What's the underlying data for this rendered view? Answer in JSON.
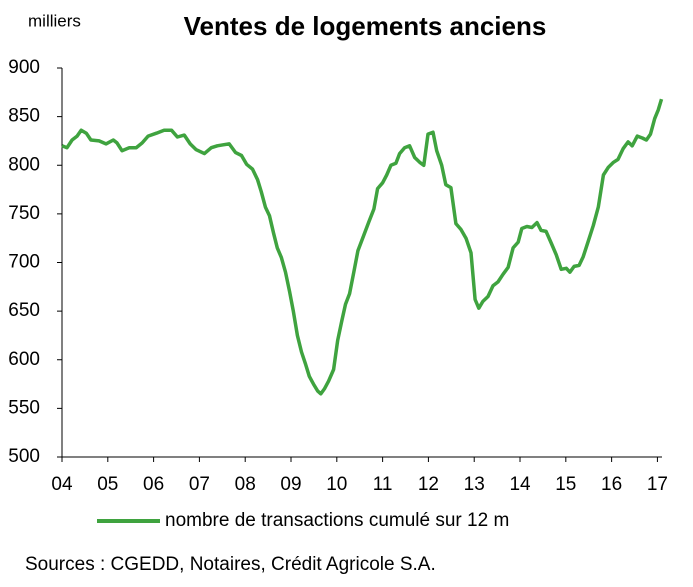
{
  "chart_data": {
    "type": "line",
    "title": "Ventes de logements anciens",
    "y_label": "milliers",
    "source": "Sources : CGEDD, Notaires, Crédit Agricole S.A.",
    "x": [
      2004.0,
      2004.11,
      2004.22,
      2004.33,
      2004.42,
      2004.53,
      2004.63,
      2004.81,
      2004.96,
      2005.12,
      2005.2,
      2005.31,
      2005.47,
      2005.62,
      2005.75,
      2005.88,
      2006.06,
      2006.23,
      2006.39,
      2006.52,
      2006.67,
      2006.8,
      2006.93,
      2007.11,
      2007.26,
      2007.39,
      2007.52,
      2007.65,
      2007.79,
      2007.92,
      2008.03,
      2008.16,
      2008.27,
      2008.35,
      2008.44,
      2008.53,
      2008.62,
      2008.7,
      2008.79,
      2008.88,
      2008.97,
      2009.05,
      2009.14,
      2009.23,
      2009.32,
      2009.4,
      2009.49,
      2009.58,
      2009.65,
      2009.73,
      2009.82,
      2009.93,
      2010.02,
      2010.11,
      2010.19,
      2010.28,
      2010.37,
      2010.46,
      2010.59,
      2010.7,
      2010.81,
      2010.89,
      2011.0,
      2011.09,
      2011.18,
      2011.29,
      2011.37,
      2011.48,
      2011.59,
      2011.7,
      2011.81,
      2011.9,
      2011.99,
      2012.1,
      2012.18,
      2012.29,
      2012.38,
      2012.49,
      2012.6,
      2012.71,
      2012.82,
      2012.93,
      2013.02,
      2013.1,
      2013.19,
      2013.3,
      2013.41,
      2013.52,
      2013.63,
      2013.74,
      2013.85,
      2013.96,
      2014.04,
      2014.15,
      2014.26,
      2014.37,
      2014.46,
      2014.57,
      2014.68,
      2014.79,
      2014.9,
      2015.01,
      2015.09,
      2015.18,
      2015.29,
      2015.38,
      2015.49,
      2015.6,
      2015.71,
      2015.82,
      2015.93,
      2016.04,
      2016.14,
      2016.25,
      2016.36,
      2016.45,
      2016.56,
      2016.67,
      2016.76,
      2016.85,
      2016.94,
      2017.02,
      2017.09
    ],
    "series": [
      {
        "name": "nombre de transactions cumulé sur 12 m",
        "color": "#3fa33f",
        "values": [
          820,
          818,
          826,
          830,
          836,
          833,
          826,
          825,
          822,
          826,
          823,
          815,
          818,
          818,
          823,
          830,
          833,
          836,
          836,
          829,
          831,
          822,
          816,
          812,
          818,
          820,
          821,
          822,
          813,
          810,
          801,
          796,
          785,
          773,
          757,
          748,
          730,
          715,
          705,
          690,
          670,
          650,
          625,
          608,
          595,
          583,
          575,
          568,
          565,
          570,
          578,
          590,
          620,
          640,
          657,
          668,
          690,
          712,
          728,
          742,
          755,
          776,
          782,
          790,
          800,
          802,
          812,
          818,
          820,
          808,
          803,
          800,
          832,
          834,
          815,
          800,
          780,
          777,
          740,
          734,
          725,
          710,
          662,
          653,
          660,
          665,
          676,
          680,
          688,
          695,
          715,
          721,
          735,
          737,
          736,
          741,
          733,
          732,
          720,
          708,
          693,
          694,
          690,
          696,
          697,
          706,
          722,
          738,
          757,
          790,
          798,
          803,
          806,
          817,
          824,
          820,
          830,
          828,
          826,
          832,
          848,
          857,
          868
        ]
      }
    ],
    "xlim": [
      2004,
      2017.1
    ],
    "xticks": [
      {
        "value": 2004,
        "label": "04"
      },
      {
        "value": 2005,
        "label": "05"
      },
      {
        "value": 2006,
        "label": "06"
      },
      {
        "value": 2007,
        "label": "07"
      },
      {
        "value": 2008,
        "label": "08"
      },
      {
        "value": 2009,
        "label": "09"
      },
      {
        "value": 2010,
        "label": "10"
      },
      {
        "value": 2011,
        "label": "11"
      },
      {
        "value": 2012,
        "label": "12"
      },
      {
        "value": 2013,
        "label": "13"
      },
      {
        "value": 2014,
        "label": "14"
      },
      {
        "value": 2015,
        "label": "15"
      },
      {
        "value": 2016,
        "label": "16"
      },
      {
        "value": 2017,
        "label": "17"
      }
    ],
    "ylim": [
      500,
      900
    ],
    "yticks": [
      500,
      550,
      600,
      650,
      700,
      750,
      800,
      850,
      900
    ],
    "grid": false
  }
}
